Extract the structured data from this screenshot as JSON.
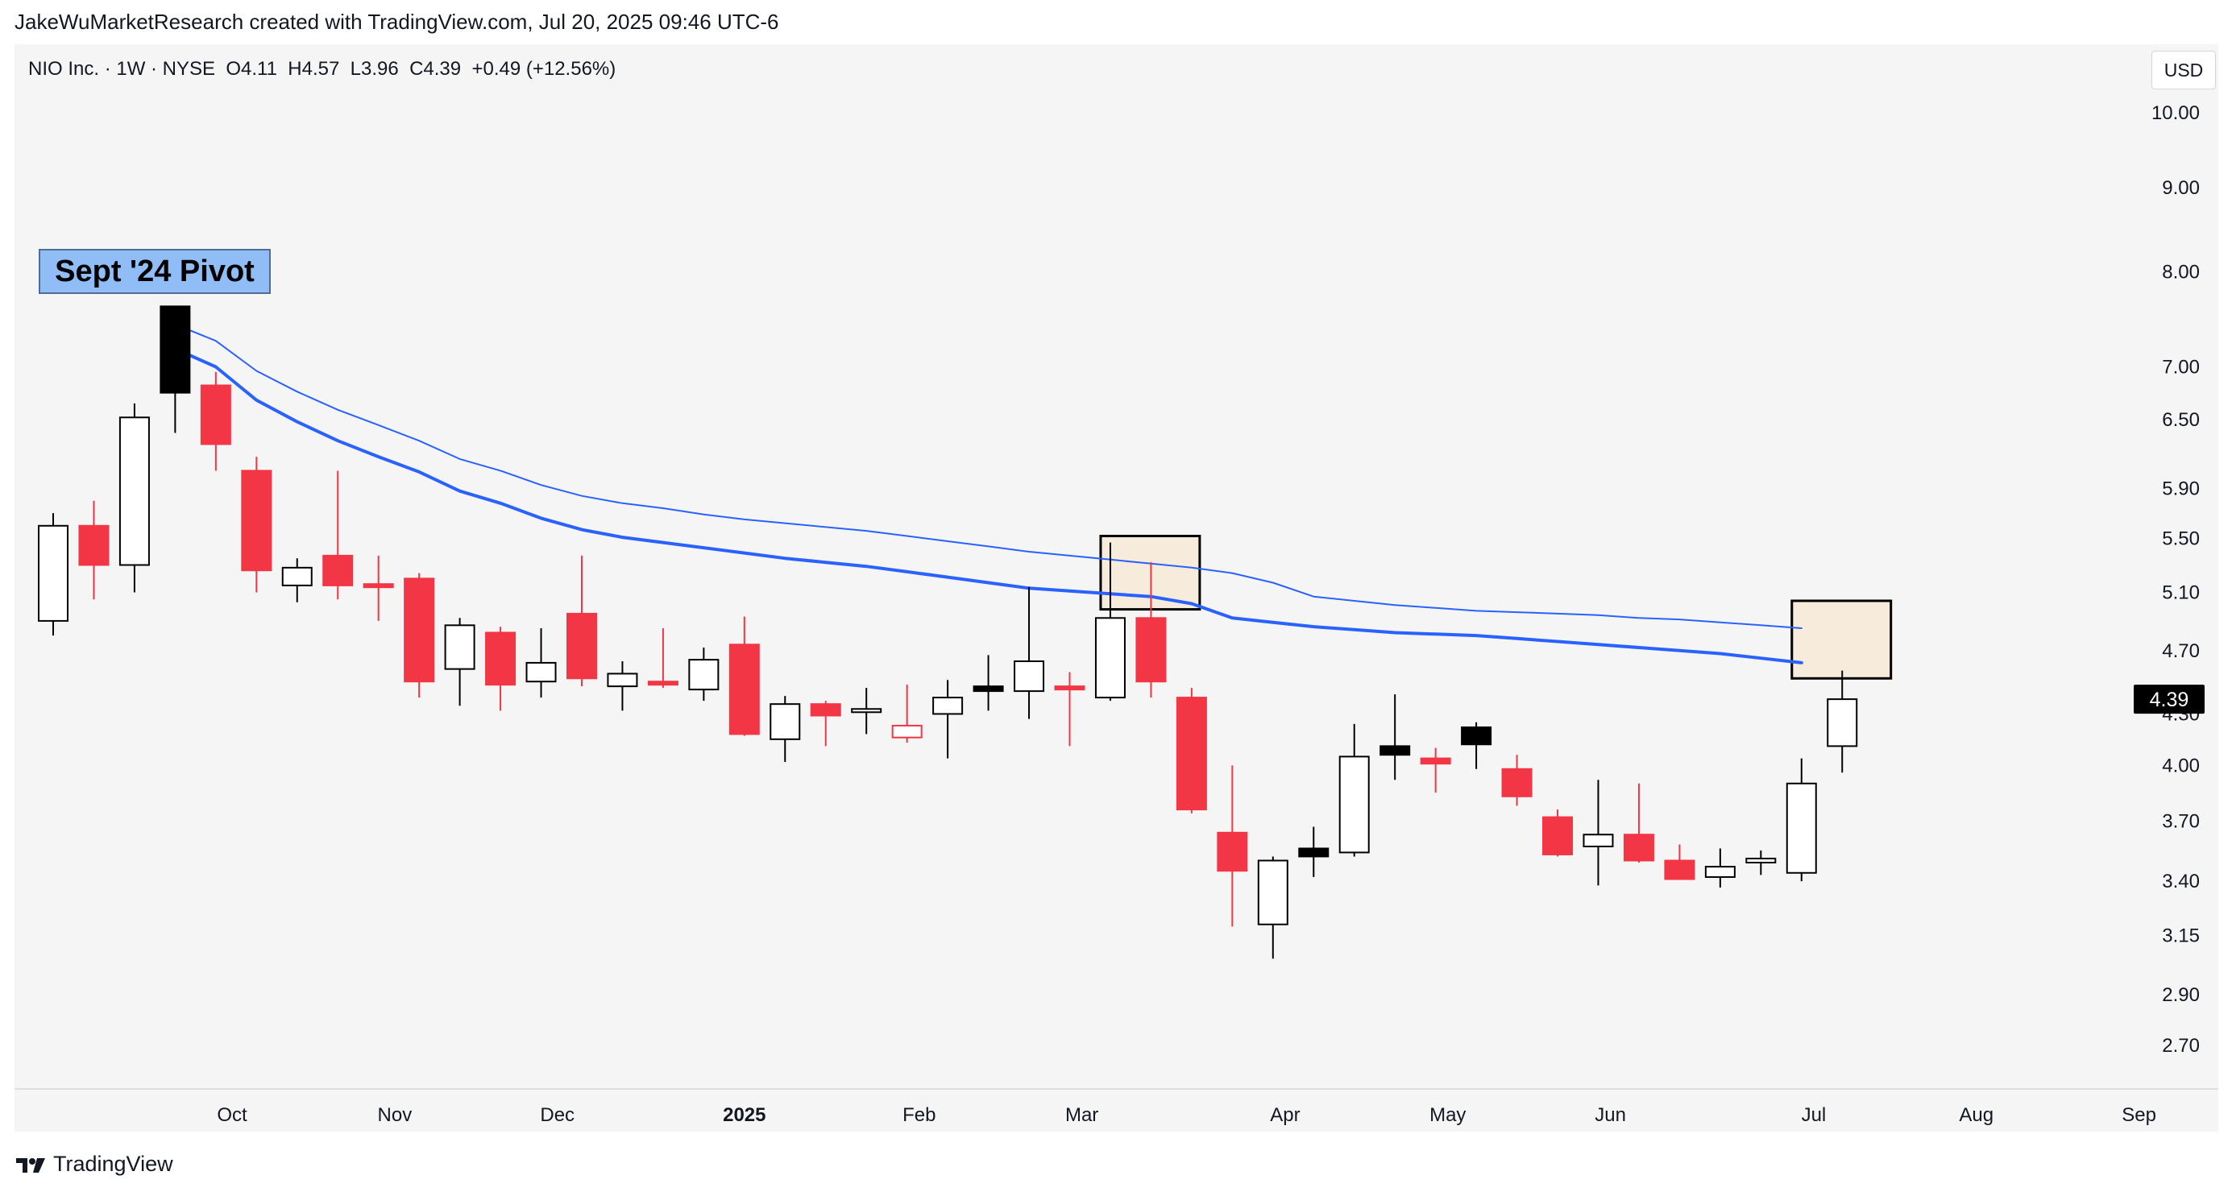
{
  "header": {
    "attribution": "JakeWuMarketResearch created with TradingView.com, Jul 20, 2025 09:46 UTC-6"
  },
  "symbol_info": {
    "text": "NIO Inc. · 1W · NYSE  O4.11  H4.57  L3.96  C4.39  +0.49 (+12.56%)"
  },
  "currency": "USD",
  "annotation": {
    "pivot_label": "Sept '24 Pivot"
  },
  "footer": {
    "brand": "TradingView"
  },
  "colors": {
    "up_fill": "#ffffff",
    "up_border": "#000000",
    "down_fill": "#f23645",
    "ma_line": "#2962ff",
    "highlight_fill": "#f7ebdc",
    "price_badge": "#000000"
  },
  "chart_data": {
    "type": "candlestick",
    "title": "NIO Inc. · 1W · NYSE",
    "y_scale": "log",
    "ylim": [
      2.5,
      10.7
    ],
    "y_ticks": [
      "10.00",
      "9.00",
      "8.00",
      "7.00",
      "6.50",
      "5.90",
      "5.50",
      "5.10",
      "4.70",
      "4.30",
      "4.00",
      "3.70",
      "3.40",
      "3.15",
      "2.90",
      "2.70"
    ],
    "x_labels": [
      {
        "label": "Oct",
        "index": 4.4,
        "bold": false
      },
      {
        "label": "Nov",
        "index": 8.4,
        "bold": false
      },
      {
        "label": "Dec",
        "index": 12.4,
        "bold": false
      },
      {
        "label": "2025",
        "index": 17.0,
        "bold": true
      },
      {
        "label": "Feb",
        "index": 21.3,
        "bold": false
      },
      {
        "label": "Mar",
        "index": 25.3,
        "bold": false
      },
      {
        "label": "Apr",
        "index": 30.3,
        "bold": false
      },
      {
        "label": "May",
        "index": 34.3,
        "bold": false
      },
      {
        "label": "Jun",
        "index": 38.3,
        "bold": false
      },
      {
        "label": "Jul",
        "index": 43.3,
        "bold": false
      },
      {
        "label": "Aug",
        "index": 47.3,
        "bold": false
      },
      {
        "label": "Sep",
        "index": 51.3,
        "bold": false
      }
    ],
    "candles": [
      {
        "o": 4.9,
        "h": 5.7,
        "l": 4.8,
        "c": 5.6,
        "style": "up"
      },
      {
        "o": 5.6,
        "h": 5.8,
        "l": 5.05,
        "c": 5.3,
        "style": "down"
      },
      {
        "o": 5.3,
        "h": 6.65,
        "l": 5.1,
        "c": 6.52,
        "style": "up"
      },
      {
        "o": 6.75,
        "h": 7.62,
        "l": 6.38,
        "c": 7.62,
        "style": "black"
      },
      {
        "o": 6.82,
        "h": 6.95,
        "l": 6.05,
        "c": 6.28,
        "style": "down"
      },
      {
        "o": 6.05,
        "h": 6.17,
        "l": 5.1,
        "c": 5.26,
        "style": "down"
      },
      {
        "o": 5.15,
        "h": 5.35,
        "l": 5.03,
        "c": 5.28,
        "style": "up"
      },
      {
        "o": 5.37,
        "h": 6.05,
        "l": 5.05,
        "c": 5.15,
        "style": "down"
      },
      {
        "o": 5.16,
        "h": 5.37,
        "l": 4.9,
        "c": 5.14,
        "style": "down"
      },
      {
        "o": 5.2,
        "h": 5.24,
        "l": 4.4,
        "c": 4.5,
        "style": "down"
      },
      {
        "o": 4.58,
        "h": 4.92,
        "l": 4.35,
        "c": 4.87,
        "style": "up"
      },
      {
        "o": 4.82,
        "h": 4.86,
        "l": 4.32,
        "c": 4.48,
        "style": "down"
      },
      {
        "o": 4.5,
        "h": 4.85,
        "l": 4.4,
        "c": 4.62,
        "style": "up"
      },
      {
        "o": 4.95,
        "h": 5.37,
        "l": 4.47,
        "c": 4.52,
        "style": "down"
      },
      {
        "o": 4.47,
        "h": 4.63,
        "l": 4.32,
        "c": 4.55,
        "style": "up"
      },
      {
        "o": 4.5,
        "h": 4.85,
        "l": 4.46,
        "c": 4.48,
        "style": "down"
      },
      {
        "o": 4.45,
        "h": 4.72,
        "l": 4.38,
        "c": 4.64,
        "style": "up"
      },
      {
        "o": 4.74,
        "h": 4.93,
        "l": 4.17,
        "c": 4.18,
        "style": "down"
      },
      {
        "o": 4.15,
        "h": 4.41,
        "l": 4.02,
        "c": 4.36,
        "style": "up"
      },
      {
        "o": 4.36,
        "h": 4.38,
        "l": 4.11,
        "c": 4.29,
        "style": "down"
      },
      {
        "o": 4.32,
        "h": 4.46,
        "l": 4.18,
        "c": 4.33,
        "style": "up"
      },
      {
        "o": 4.23,
        "h": 4.48,
        "l": 4.13,
        "c": 4.16,
        "style": "hollow-red"
      },
      {
        "o": 4.3,
        "h": 4.51,
        "l": 4.04,
        "c": 4.4,
        "style": "up"
      },
      {
        "o": 4.47,
        "h": 4.67,
        "l": 4.32,
        "c": 4.44,
        "style": "black"
      },
      {
        "o": 4.44,
        "h": 5.14,
        "l": 4.27,
        "c": 4.63,
        "style": "up"
      },
      {
        "o": 4.47,
        "h": 4.56,
        "l": 4.11,
        "c": 4.46,
        "style": "down"
      },
      {
        "o": 4.4,
        "h": 5.47,
        "l": 4.38,
        "c": 4.92,
        "style": "up"
      },
      {
        "o": 4.92,
        "h": 5.32,
        "l": 4.4,
        "c": 4.5,
        "style": "down"
      },
      {
        "o": 4.4,
        "h": 4.46,
        "l": 3.74,
        "c": 3.76,
        "style": "down"
      },
      {
        "o": 3.64,
        "h": 4.0,
        "l": 3.19,
        "c": 3.45,
        "style": "down"
      },
      {
        "o": 3.2,
        "h": 3.52,
        "l": 3.05,
        "c": 3.5,
        "style": "up"
      },
      {
        "o": 3.56,
        "h": 3.67,
        "l": 3.42,
        "c": 3.52,
        "style": "black"
      },
      {
        "o": 3.54,
        "h": 4.24,
        "l": 3.52,
        "c": 4.05,
        "style": "up"
      },
      {
        "o": 4.06,
        "h": 4.42,
        "l": 3.92,
        "c": 4.11,
        "style": "black"
      },
      {
        "o": 4.04,
        "h": 4.1,
        "l": 3.85,
        "c": 4.01,
        "style": "down"
      },
      {
        "o": 4.22,
        "h": 4.25,
        "l": 3.98,
        "c": 4.12,
        "style": "black"
      },
      {
        "o": 3.98,
        "h": 4.06,
        "l": 3.78,
        "c": 3.83,
        "style": "down"
      },
      {
        "o": 3.72,
        "h": 3.76,
        "l": 3.52,
        "c": 3.53,
        "style": "down"
      },
      {
        "o": 3.57,
        "h": 3.92,
        "l": 3.38,
        "c": 3.63,
        "style": "up"
      },
      {
        "o": 3.63,
        "h": 3.9,
        "l": 3.49,
        "c": 3.5,
        "style": "down"
      },
      {
        "o": 3.5,
        "h": 3.58,
        "l": 3.41,
        "c": 3.41,
        "style": "down"
      },
      {
        "o": 3.42,
        "h": 3.56,
        "l": 3.37,
        "c": 3.47,
        "style": "up"
      },
      {
        "o": 3.49,
        "h": 3.55,
        "l": 3.43,
        "c": 3.51,
        "style": "up"
      },
      {
        "o": 3.44,
        "h": 4.04,
        "l": 3.4,
        "c": 3.9,
        "style": "up"
      },
      {
        "o": 4.11,
        "h": 4.57,
        "l": 3.96,
        "c": 4.39,
        "style": "up"
      }
    ],
    "series": [
      {
        "name": "MA (thin)",
        "start_index": 3,
        "width": 2,
        "values": [
          7.43,
          7.26,
          6.96,
          6.76,
          6.59,
          6.45,
          6.31,
          6.15,
          6.05,
          5.93,
          5.84,
          5.78,
          5.74,
          5.69,
          5.65,
          5.62,
          5.59,
          5.56,
          5.52,
          5.48,
          5.44,
          5.4,
          5.37,
          5.34,
          5.31,
          5.28,
          5.24,
          5.17,
          5.07,
          5.04,
          5.01,
          4.99,
          4.97,
          4.96,
          4.95,
          4.94,
          4.92,
          4.91,
          4.89,
          4.87,
          4.85
        ]
      },
      {
        "name": "MA (thick)",
        "start_index": 3,
        "width": 4,
        "values": [
          7.18,
          7.0,
          6.68,
          6.48,
          6.31,
          6.17,
          6.04,
          5.88,
          5.78,
          5.66,
          5.57,
          5.51,
          5.47,
          5.43,
          5.39,
          5.35,
          5.32,
          5.29,
          5.25,
          5.21,
          5.17,
          5.13,
          5.11,
          5.09,
          5.07,
          5.02,
          4.92,
          4.89,
          4.86,
          4.84,
          4.82,
          4.81,
          4.8,
          4.78,
          4.76,
          4.74,
          4.72,
          4.7,
          4.68,
          4.65,
          4.62
        ]
      }
    ],
    "highlight_boxes": [
      {
        "from_index": 26,
        "to_index": 28,
        "low": 4.98,
        "high": 5.52
      },
      {
        "from_index": 43,
        "to_index": 45,
        "low": 4.52,
        "high": 5.04
      }
    ],
    "last_price": "4.39"
  }
}
